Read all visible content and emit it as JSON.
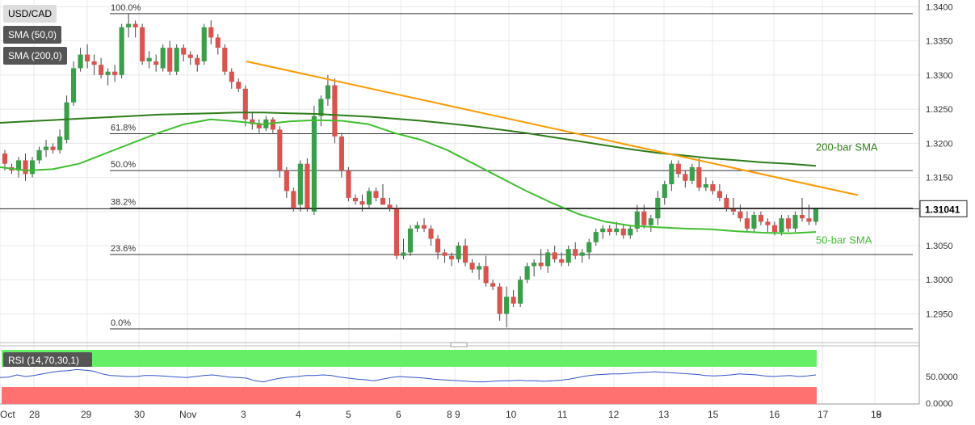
{
  "chart_data": {
    "type": "candlestick",
    "symbol": "USD/CAD",
    "indicators": [
      "SMA (50,0)",
      "SMA (200,0)"
    ],
    "x_labels": [
      "Oct",
      "28",
      "29",
      "30",
      "Nov",
      "3",
      "4",
      "5",
      "6",
      "8 9",
      "10",
      "11",
      "12",
      "13",
      "15",
      "16",
      "17",
      "18",
      "19"
    ],
    "y_ticks": [
      "1.3400",
      "1.3350",
      "1.3300",
      "1.3250",
      "1.3200",
      "1.3150",
      "1.3100",
      "1.3050",
      "1.3000",
      "1.2950"
    ],
    "ylim": [
      1.2915,
      1.341
    ],
    "last_price": "1.31041",
    "last_price_value": 1.31041,
    "fibonacci": [
      {
        "label": "100.0%",
        "value": 1.339
      },
      {
        "label": "61.8%",
        "value": 1.3214
      },
      {
        "label": "50.0%",
        "value": 1.316
      },
      {
        "label": "38.2%",
        "value": 1.3105
      },
      {
        "label": "23.6%",
        "value": 1.3037
      },
      {
        "label": "0.0%",
        "value": 1.2928
      }
    ],
    "candles": [
      [
        1.3185,
        1.319,
        1.316,
        1.317
      ],
      [
        1.3165,
        1.317,
        1.3155,
        1.316
      ],
      [
        1.316,
        1.318,
        1.315,
        1.3175
      ],
      [
        1.3175,
        1.3185,
        1.3145,
        1.3155
      ],
      [
        1.3155,
        1.318,
        1.315,
        1.3175
      ],
      [
        1.3175,
        1.3195,
        1.317,
        1.319
      ],
      [
        1.319,
        1.3205,
        1.318,
        1.3195
      ],
      [
        1.3195,
        1.32,
        1.3185,
        1.319
      ],
      [
        1.319,
        1.322,
        1.3185,
        1.321
      ],
      [
        1.3205,
        1.327,
        1.32,
        1.326
      ],
      [
        1.326,
        1.332,
        1.3255,
        1.331
      ],
      [
        1.331,
        1.334,
        1.3305,
        1.333
      ],
      [
        1.333,
        1.3345,
        1.331,
        1.332
      ],
      [
        1.332,
        1.333,
        1.33,
        1.3315
      ],
      [
        1.3315,
        1.3325,
        1.3295,
        1.33
      ],
      [
        1.33,
        1.331,
        1.3285,
        1.3305
      ],
      [
        1.3305,
        1.3315,
        1.329,
        1.33
      ],
      [
        1.33,
        1.3375,
        1.3295,
        1.337
      ],
      [
        1.337,
        1.339,
        1.3355,
        1.3375
      ],
      [
        1.3375,
        1.338,
        1.3355,
        1.337
      ],
      [
        1.337,
        1.3375,
        1.3315,
        1.332
      ],
      [
        1.332,
        1.3335,
        1.331,
        1.3325
      ],
      [
        1.332,
        1.333,
        1.3305,
        1.3315
      ],
      [
        1.331,
        1.3345,
        1.3305,
        1.334
      ],
      [
        1.334,
        1.335,
        1.33,
        1.3305
      ],
      [
        1.3305,
        1.3345,
        1.33,
        1.334
      ],
      [
        1.334,
        1.3345,
        1.332,
        1.333
      ],
      [
        1.333,
        1.3335,
        1.3315,
        1.3325
      ],
      [
        1.3325,
        1.333,
        1.3305,
        1.3315
      ],
      [
        1.332,
        1.3375,
        1.3315,
        1.337
      ],
      [
        1.337,
        1.338,
        1.3345,
        1.3355
      ],
      [
        1.3355,
        1.336,
        1.333,
        1.334
      ],
      [
        1.334,
        1.3345,
        1.33,
        1.3305
      ],
      [
        1.3305,
        1.331,
        1.328,
        1.329
      ],
      [
        1.329,
        1.3295,
        1.3275,
        1.328
      ],
      [
        1.328,
        1.3285,
        1.3225,
        1.3235
      ],
      [
        1.3235,
        1.3245,
        1.322,
        1.3228
      ],
      [
        1.3228,
        1.3235,
        1.3215,
        1.3222
      ],
      [
        1.3222,
        1.324,
        1.3218,
        1.3235
      ],
      [
        1.3235,
        1.3238,
        1.3215,
        1.322
      ],
      [
        1.322,
        1.3225,
        1.315,
        1.316
      ],
      [
        1.316,
        1.3165,
        1.312,
        1.313
      ],
      [
        1.313,
        1.3135,
        1.31,
        1.3105
      ],
      [
        1.311,
        1.3175,
        1.31,
        1.317
      ],
      [
        1.317,
        1.3178,
        1.31,
        1.3105
      ],
      [
        1.31,
        1.3255,
        1.3095,
        1.324
      ],
      [
        1.324,
        1.327,
        1.3225,
        1.3265
      ],
      [
        1.3265,
        1.33,
        1.3255,
        1.3285
      ],
      [
        1.3285,
        1.3295,
        1.32,
        1.321
      ],
      [
        1.321,
        1.3215,
        1.315,
        1.316
      ],
      [
        1.316,
        1.3165,
        1.3115,
        1.312
      ],
      [
        1.312,
        1.3125,
        1.311,
        1.3115
      ],
      [
        1.3115,
        1.3125,
        1.31,
        1.311
      ],
      [
        1.311,
        1.3135,
        1.3105,
        1.313
      ],
      [
        1.313,
        1.3135,
        1.3115,
        1.312
      ],
      [
        1.312,
        1.314,
        1.311,
        1.311
      ],
      [
        1.311,
        1.312,
        1.31,
        1.3105
      ],
      [
        1.3105,
        1.311,
        1.303,
        1.3035
      ],
      [
        1.3035,
        1.306,
        1.303,
        1.304
      ],
      [
        1.304,
        1.308,
        1.3035,
        1.3075
      ],
      [
        1.3075,
        1.3085,
        1.307,
        1.308
      ],
      [
        1.308,
        1.309,
        1.307,
        1.3075
      ],
      [
        1.3075,
        1.308,
        1.305,
        1.306
      ],
      [
        1.306,
        1.3065,
        1.303,
        1.304
      ],
      [
        1.304,
        1.3045,
        1.3025,
        1.3035
      ],
      [
        1.3035,
        1.304,
        1.302,
        1.303
      ],
      [
        1.303,
        1.3055,
        1.3025,
        1.305
      ],
      [
        1.305,
        1.306,
        1.302,
        1.3025
      ],
      [
        1.3025,
        1.303,
        1.301,
        1.3015
      ],
      [
        1.3015,
        1.3025,
        1.3,
        1.302
      ],
      [
        1.302,
        1.3035,
        1.299,
        1.2995
      ],
      [
        1.2995,
        1.3,
        1.2985,
        1.299
      ],
      [
        1.299,
        1.2995,
        1.294,
        1.295
      ],
      [
        1.295,
        1.299,
        1.293,
        1.2975
      ],
      [
        1.2975,
        1.2985,
        1.296,
        1.2965
      ],
      [
        1.2965,
        1.3005,
        1.296,
        1.3
      ],
      [
        1.3,
        1.3025,
        1.2995,
        1.302
      ],
      [
        1.302,
        1.303,
        1.3005,
        1.3025
      ],
      [
        1.3025,
        1.3045,
        1.3015,
        1.302
      ],
      [
        1.302,
        1.3045,
        1.301,
        1.304
      ],
      [
        1.304,
        1.305,
        1.3025,
        1.303
      ],
      [
        1.303,
        1.304,
        1.302,
        1.3025
      ],
      [
        1.3025,
        1.305,
        1.302,
        1.3045
      ],
      [
        1.3045,
        1.3055,
        1.303,
        1.3035
      ],
      [
        1.3035,
        1.3045,
        1.3025,
        1.304
      ],
      [
        1.304,
        1.306,
        1.303,
        1.3055
      ],
      [
        1.3055,
        1.3075,
        1.305,
        1.307
      ],
      [
        1.307,
        1.308,
        1.306,
        1.3075
      ],
      [
        1.3075,
        1.308,
        1.3065,
        1.307
      ],
      [
        1.307,
        1.3085,
        1.3065,
        1.3075
      ],
      [
        1.3075,
        1.308,
        1.306,
        1.3065
      ],
      [
        1.3065,
        1.308,
        1.306,
        1.3075
      ],
      [
        1.3075,
        1.311,
        1.307,
        1.31
      ],
      [
        1.31,
        1.311,
        1.3075,
        1.308
      ],
      [
        1.308,
        1.3095,
        1.307,
        1.309
      ],
      [
        1.309,
        1.313,
        1.308,
        1.312
      ],
      [
        1.312,
        1.3145,
        1.311,
        1.314
      ],
      [
        1.314,
        1.3175,
        1.313,
        1.317
      ],
      [
        1.317,
        1.3175,
        1.315,
        1.3155
      ],
      [
        1.3155,
        1.316,
        1.3135,
        1.3145
      ],
      [
        1.3145,
        1.317,
        1.314,
        1.3165
      ],
      [
        1.3165,
        1.3178,
        1.313,
        1.3135
      ],
      [
        1.3135,
        1.315,
        1.313,
        1.314
      ],
      [
        1.314,
        1.3145,
        1.3125,
        1.313
      ],
      [
        1.313,
        1.314,
        1.3115,
        1.312
      ],
      [
        1.312,
        1.3125,
        1.31,
        1.3105
      ],
      [
        1.3105,
        1.312,
        1.3095,
        1.31
      ],
      [
        1.31,
        1.311,
        1.3085,
        1.309
      ],
      [
        1.309,
        1.31,
        1.307,
        1.3075
      ],
      [
        1.3075,
        1.31,
        1.307,
        1.3095
      ],
      [
        1.3095,
        1.31,
        1.308,
        1.3085
      ],
      [
        1.3085,
        1.309,
        1.307,
        1.308
      ],
      [
        1.308,
        1.3085,
        1.3065,
        1.307
      ],
      [
        1.307,
        1.3095,
        1.3065,
        1.309
      ],
      [
        1.309,
        1.3095,
        1.307,
        1.3075
      ],
      [
        1.3075,
        1.31,
        1.307,
        1.3095
      ],
      [
        1.3095,
        1.312,
        1.3085,
        1.309
      ],
      [
        1.309,
        1.311,
        1.308,
        1.3085
      ],
      [
        1.3085,
        1.3105,
        1.308,
        1.3104
      ]
    ],
    "series": [
      {
        "name": "200-bar SMA",
        "color": "#2e7d1a",
        "values": [
          1.323,
          1.3232,
          1.3234,
          1.3236,
          1.3238,
          1.324,
          1.3242,
          1.3243,
          1.3244,
          1.3245,
          1.3245,
          1.3244,
          1.3243,
          1.3241,
          1.3239,
          1.3236,
          1.3233,
          1.3229,
          1.3225,
          1.322,
          1.3215,
          1.3209,
          1.3203,
          1.3197,
          1.3191,
          1.3186,
          1.3182,
          1.3178,
          1.3175,
          1.3172,
          1.317,
          1.3167
        ]
      },
      {
        "name": "50-bar SMA",
        "color": "#3fbf2f",
        "values": [
          1.3165,
          1.316,
          1.3162,
          1.317,
          1.3185,
          1.32,
          1.3215,
          1.3228,
          1.3235,
          1.3232,
          1.3228,
          1.3232,
          1.3234,
          1.3233,
          1.3228,
          1.3215,
          1.3205,
          1.319,
          1.317,
          1.315,
          1.313,
          1.3112,
          1.3096,
          1.3085,
          1.3079,
          1.3077,
          1.3075,
          1.3074,
          1.3071,
          1.3069,
          1.3068,
          1.307
        ]
      }
    ],
    "trendline": {
      "color": "#ff9900",
      "from": 1.332,
      "to": 1.3124
    },
    "rsi": {
      "label": "RSI (14,70,30,1)",
      "y_ticks": [
        "50.0000",
        "0.0000"
      ],
      "values": [
        48,
        49,
        53,
        50,
        52,
        55,
        58,
        60,
        61,
        63,
        62,
        60,
        55,
        52,
        51,
        50,
        50,
        52,
        52,
        51,
        50,
        49,
        48,
        50,
        52,
        53,
        51,
        49,
        48,
        47,
        42,
        40,
        44,
        47,
        49,
        50,
        52,
        52,
        53,
        52,
        49,
        47,
        45,
        44,
        42,
        45,
        48,
        50,
        49,
        48,
        47,
        45,
        44,
        43,
        42,
        41,
        40,
        40,
        41,
        42,
        42,
        43,
        42,
        42,
        41,
        42,
        43,
        45,
        48,
        51,
        53,
        54,
        55,
        55,
        56,
        57,
        58,
        59,
        58,
        57,
        56,
        55,
        54,
        52,
        51,
        52,
        53,
        55,
        54,
        53,
        51,
        50,
        51,
        52,
        50,
        51,
        53
      ]
    },
    "annotations": {
      "sma200_label": "200-bar SMA",
      "sma50_label": "50-bar SMA"
    },
    "colors": {
      "bull": "#3a9e4a",
      "bear": "#d9534f",
      "grid": "#e8e8e8",
      "rsi_over": "#66ee66",
      "rsi_under": "#ff7070",
      "rsi_line": "#3355cc"
    }
  }
}
